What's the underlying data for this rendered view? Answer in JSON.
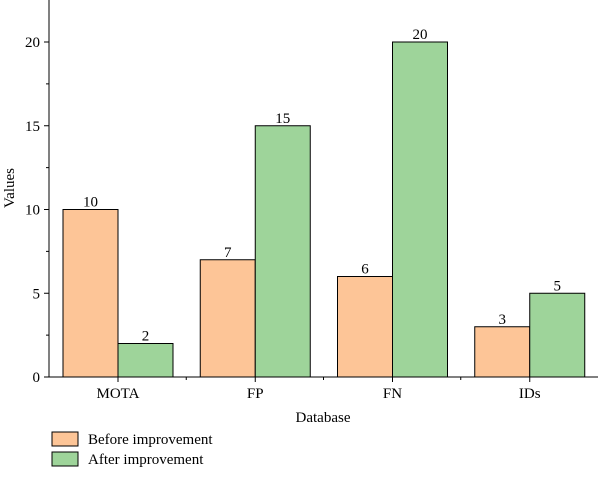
{
  "chart_data": {
    "type": "bar",
    "categories": [
      "MOTA",
      "FP",
      "FN",
      "IDs"
    ],
    "series": [
      {
        "name": "Before improvement",
        "values": [
          10,
          7,
          6,
          3
        ],
        "color": "#fdc597"
      },
      {
        "name": "After improvement",
        "values": [
          2,
          15,
          20,
          5
        ],
        "color": "#9ed49a"
      }
    ],
    "xlabel": "Database",
    "ylabel": "Values",
    "ylim": [
      0,
      22
    ],
    "yticks": [
      0,
      5,
      10,
      15,
      20
    ],
    "grid": false,
    "legend_position": "bottom-left"
  }
}
